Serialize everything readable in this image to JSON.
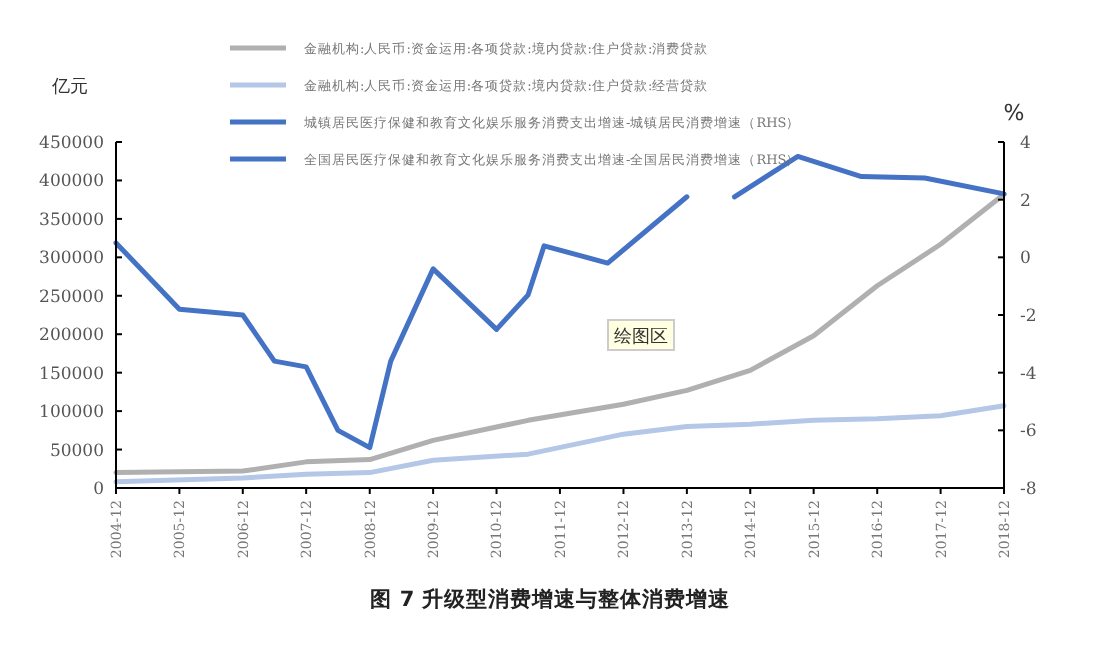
{
  "chart_data": {
    "type": "line",
    "title": "图 7 升级型消费增速与整体消费增速",
    "ylabel": "亿元",
    "y2label": "%",
    "annotations": [
      "绘图区"
    ],
    "xlim": [
      "2004-12",
      "2018-12"
    ],
    "xticks": [
      "2004-12",
      "2005-12",
      "2006-12",
      "2007-12",
      "2008-12",
      "2009-12",
      "2010-12",
      "2011-12",
      "2012-12",
      "2013-12",
      "2014-12",
      "2015-12",
      "2016-12",
      "2017-12",
      "2018-12"
    ],
    "ylim": [
      0,
      450000
    ],
    "yticks": [
      0,
      50000,
      100000,
      150000,
      200000,
      250000,
      300000,
      350000,
      400000,
      450000
    ],
    "y2lim": [
      -8,
      4
    ],
    "y2ticks": [
      -8,
      -6,
      -4,
      -2,
      0,
      2,
      4
    ],
    "legend": "top",
    "grid": false,
    "series": [
      {
        "name": "金融机构:人民币:资金运用:各项贷款:境内贷款:住户贷款:消费贷款",
        "color": "#b0b0b0",
        "x": [
          "2004-12",
          "2006-12",
          "2007-12",
          "2008-12",
          "2009-12",
          "2011-06",
          "2012-12",
          "2013-12",
          "2014-12",
          "2015-12",
          "2016-12",
          "2017-12",
          "2018-12"
        ],
        "values": [
          20000,
          22000,
          34000,
          37000,
          62000,
          88000,
          109000,
          127000,
          153000,
          198000,
          263000,
          317000,
          382000
        ]
      },
      {
        "name": "金融机构:人民币:资金运用:各项贷款:境内贷款:住户贷款:经营贷款",
        "color": "#b4c7e7",
        "x": [
          "2004-12",
          "2006-12",
          "2007-12",
          "2008-12",
          "2009-12",
          "2011-06",
          "2012-12",
          "2013-12",
          "2014-12",
          "2015-12",
          "2016-12",
          "2017-12",
          "2018-12"
        ],
        "values": [
          8000,
          13000,
          18000,
          20000,
          36000,
          44000,
          70000,
          80000,
          83000,
          88000,
          90000,
          94000,
          107000
        ]
      },
      {
        "name": "城镇居民医疗保健和教育文化娱乐服务消费支出增速-城镇居民消费增速（RHS）",
        "color": "#4472c4",
        "axis": "y2",
        "x": [
          "2004-12",
          "2005-12",
          "2006-12",
          "2007-06",
          "2007-12",
          "2008-06",
          "2008-12",
          "2009-04",
          "2009-12",
          "2010-12",
          "2011-06",
          "2011-09",
          "2012-09",
          "2013-12"
        ],
        "values": [
          0.5,
          -1.8,
          -2.0,
          -3.6,
          -3.8,
          -6.0,
          -6.6,
          -3.6,
          -0.4,
          -2.5,
          -1.3,
          0.4,
          -0.2,
          2.1
        ]
      },
      {
        "name": "全国居民医疗保健和教育文化娱乐服务消费支出增速-全国居民消费增速（RHS）",
        "color": "#4472c4",
        "axis": "y2",
        "x": [
          "2014-09",
          "2015-09",
          "2016-09",
          "2017-09",
          "2018-12"
        ],
        "values": [
          2.1,
          3.5,
          2.8,
          2.75,
          2.2
        ]
      }
    ]
  }
}
